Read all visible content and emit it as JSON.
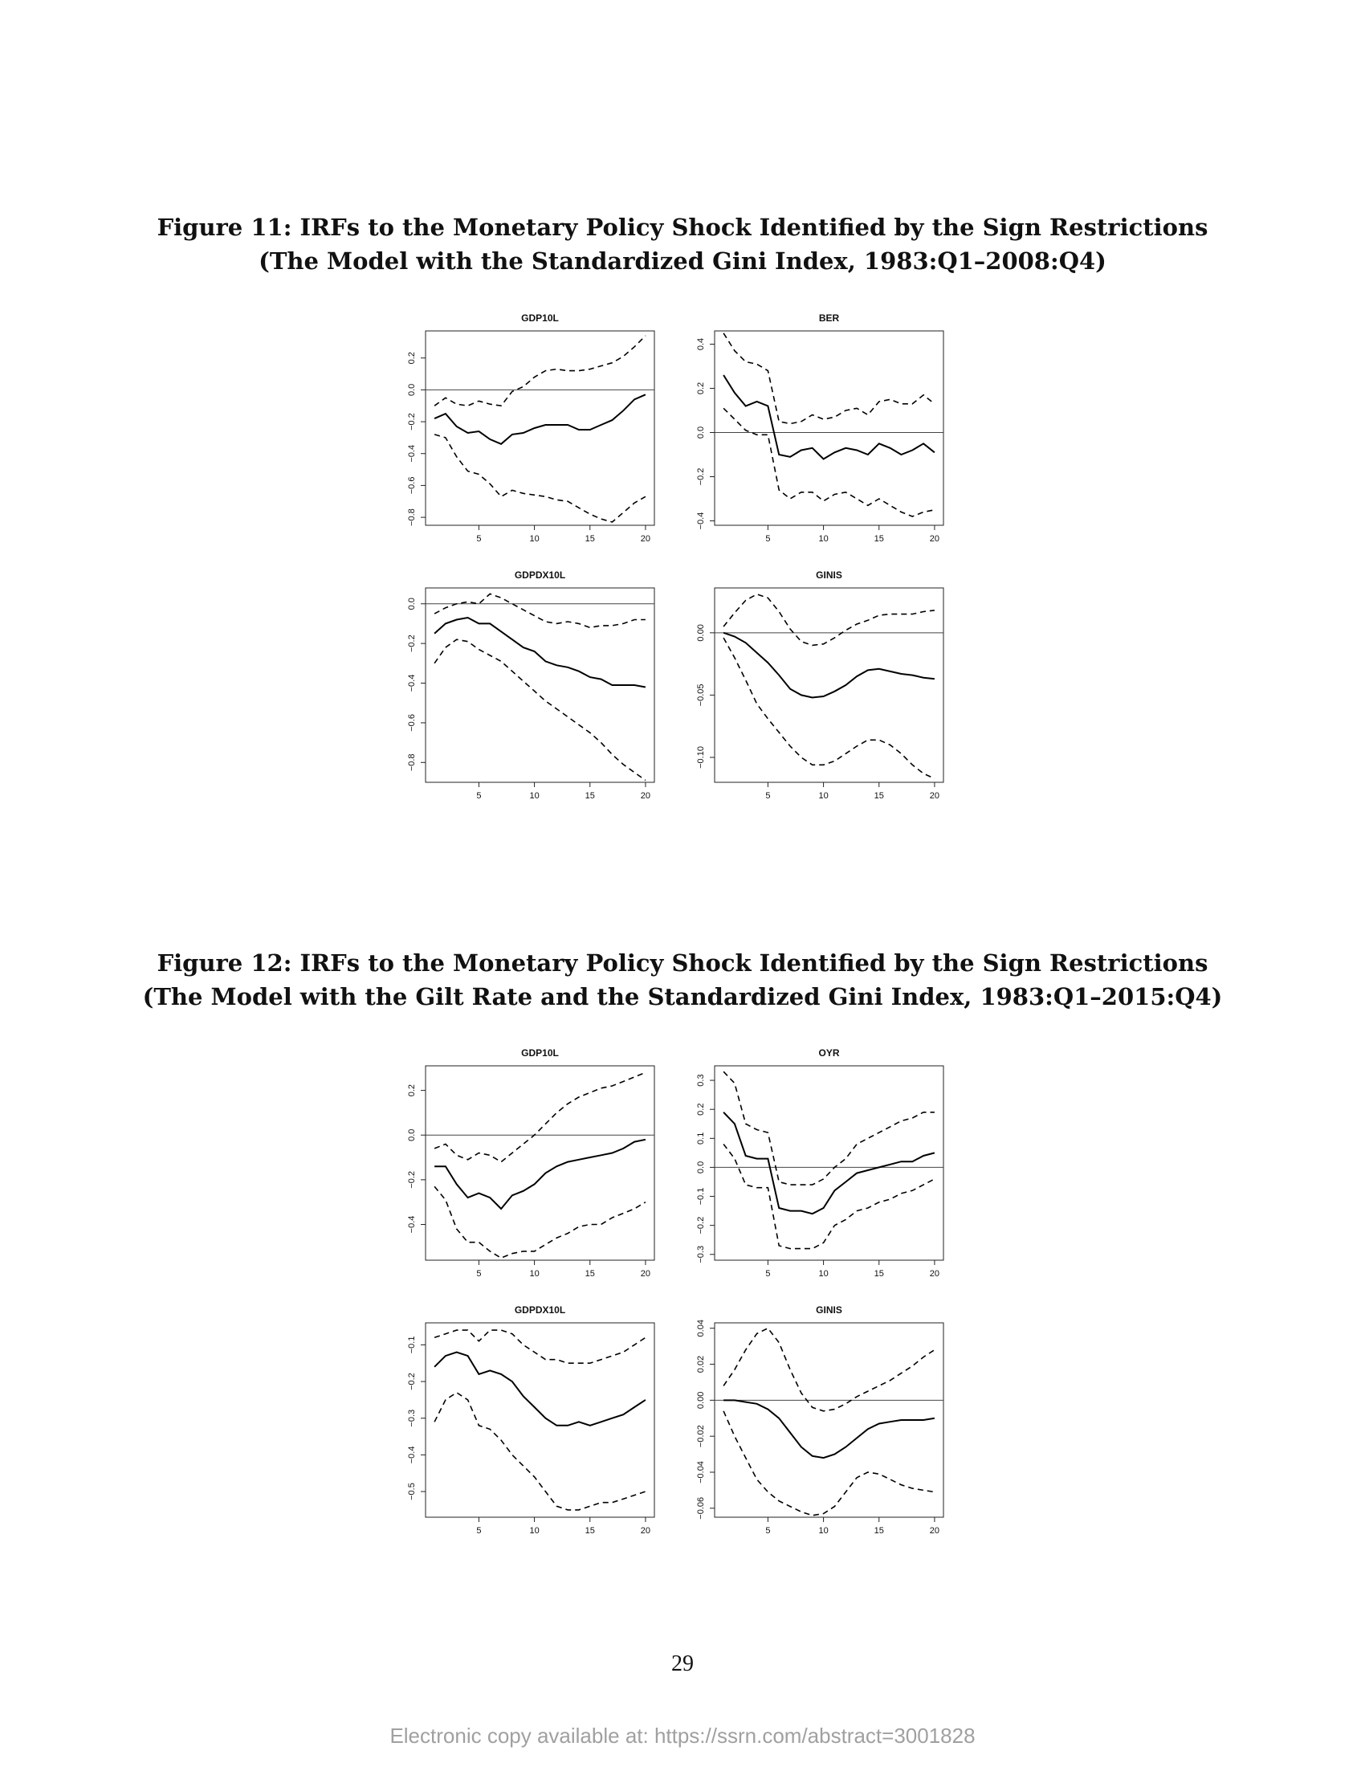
{
  "figures": [
    {
      "title_line1": "Figure 11: IRFs to the Monetary Policy Shock Identified by the Sign Restrictions",
      "title_line2": "(The Model with the Standardized Gini Index, 1983:Q1–2008:Q4)"
    },
    {
      "title_line1": "Figure 12: IRFs to the Monetary Policy Shock Identified by the Sign Restrictions",
      "title_line2": "(The Model with the Gilt Rate and the Standardized Gini Index, 1983:Q1–2015:Q4)"
    }
  ],
  "page_number": "29",
  "footer": "Electronic copy available at: https://ssrn.com/abstract=3001828",
  "chart_data": [
    {
      "type": "line",
      "figure": 11,
      "title": "GDP10L",
      "x": [
        1,
        2,
        3,
        4,
        5,
        6,
        7,
        8,
        9,
        10,
        11,
        12,
        13,
        14,
        15,
        16,
        17,
        18,
        19,
        20
      ],
      "xticks": [
        5,
        10,
        15,
        20
      ],
      "ylim": [
        -0.85,
        0.37
      ],
      "yticks": [
        -0.8,
        -0.6,
        -0.4,
        -0.2,
        0.0,
        0.2
      ],
      "yticklabels": [
        "−0.8",
        "−0.6",
        "−0.4",
        "−0.2",
        "0.0",
        "0.2"
      ],
      "series": [
        {
          "style": "solid",
          "values": [
            -0.18,
            -0.15,
            -0.23,
            -0.27,
            -0.26,
            -0.31,
            -0.34,
            -0.28,
            -0.27,
            -0.24,
            -0.22,
            -0.22,
            -0.22,
            -0.25,
            -0.25,
            -0.22,
            -0.19,
            -0.13,
            -0.06,
            -0.03
          ]
        },
        {
          "style": "dashed",
          "values": [
            -0.1,
            -0.05,
            -0.09,
            -0.1,
            -0.07,
            -0.09,
            -0.1,
            -0.01,
            0.02,
            0.08,
            0.12,
            0.13,
            0.12,
            0.12,
            0.13,
            0.15,
            0.17,
            0.21,
            0.27,
            0.34
          ]
        },
        {
          "style": "dashed",
          "values": [
            -0.28,
            -0.3,
            -0.42,
            -0.51,
            -0.53,
            -0.59,
            -0.67,
            -0.63,
            -0.65,
            -0.66,
            -0.67,
            -0.69,
            -0.7,
            -0.74,
            -0.78,
            -0.81,
            -0.83,
            -0.77,
            -0.71,
            -0.67
          ]
        }
      ],
      "zero_line": true
    },
    {
      "type": "line",
      "figure": 11,
      "title": "BER",
      "x": [
        1,
        2,
        3,
        4,
        5,
        6,
        7,
        8,
        9,
        10,
        11,
        12,
        13,
        14,
        15,
        16,
        17,
        18,
        19,
        20
      ],
      "xticks": [
        5,
        10,
        15,
        20
      ],
      "ylim": [
        -0.42,
        0.46
      ],
      "yticks": [
        -0.4,
        -0.2,
        0.0,
        0.2,
        0.4
      ],
      "yticklabels": [
        "−0.4",
        "−0.2",
        "0.0",
        "0.2",
        "0.4"
      ],
      "series": [
        {
          "style": "solid",
          "values": [
            0.26,
            0.18,
            0.12,
            0.14,
            0.12,
            -0.1,
            -0.11,
            -0.08,
            -0.07,
            -0.12,
            -0.09,
            -0.07,
            -0.08,
            -0.1,
            -0.05,
            -0.07,
            -0.1,
            -0.08,
            -0.05,
            -0.09
          ]
        },
        {
          "style": "dashed",
          "values": [
            0.45,
            0.37,
            0.32,
            0.31,
            0.28,
            0.05,
            0.04,
            0.05,
            0.08,
            0.06,
            0.07,
            0.1,
            0.11,
            0.08,
            0.14,
            0.15,
            0.13,
            0.13,
            0.17,
            0.13
          ]
        },
        {
          "style": "dashed",
          "values": [
            0.11,
            0.06,
            0.01,
            -0.01,
            -0.01,
            -0.26,
            -0.3,
            -0.27,
            -0.27,
            -0.31,
            -0.28,
            -0.27,
            -0.3,
            -0.33,
            -0.3,
            -0.33,
            -0.36,
            -0.38,
            -0.36,
            -0.35
          ]
        }
      ],
      "zero_line": true
    },
    {
      "type": "line",
      "figure": 11,
      "title": "GDPDX10L",
      "x": [
        1,
        2,
        3,
        4,
        5,
        6,
        7,
        8,
        9,
        10,
        11,
        12,
        13,
        14,
        15,
        16,
        17,
        18,
        19,
        20
      ],
      "xticks": [
        5,
        10,
        15,
        20
      ],
      "ylim": [
        -0.9,
        0.08
      ],
      "yticks": [
        -0.8,
        -0.6,
        -0.4,
        -0.2,
        0.0
      ],
      "yticklabels": [
        "−0.8",
        "−0.6",
        "−0.4",
        "−0.2",
        "0.0"
      ],
      "series": [
        {
          "style": "solid",
          "values": [
            -0.15,
            -0.1,
            -0.08,
            -0.07,
            -0.1,
            -0.1,
            -0.14,
            -0.18,
            -0.22,
            -0.24,
            -0.29,
            -0.31,
            -0.32,
            -0.34,
            -0.37,
            -0.38,
            -0.41,
            -0.41,
            -0.41,
            -0.42
          ]
        },
        {
          "style": "dashed",
          "values": [
            -0.05,
            -0.02,
            0.0,
            0.01,
            0.0,
            0.05,
            0.03,
            0.0,
            -0.03,
            -0.06,
            -0.09,
            -0.1,
            -0.09,
            -0.1,
            -0.12,
            -0.11,
            -0.11,
            -0.1,
            -0.08,
            -0.08
          ]
        },
        {
          "style": "dashed",
          "values": [
            -0.3,
            -0.22,
            -0.18,
            -0.19,
            -0.23,
            -0.26,
            -0.29,
            -0.34,
            -0.39,
            -0.44,
            -0.49,
            -0.53,
            -0.57,
            -0.61,
            -0.65,
            -0.7,
            -0.76,
            -0.81,
            -0.85,
            -0.89
          ]
        }
      ],
      "zero_line": true
    },
    {
      "type": "line",
      "figure": 11,
      "title": "GINIS",
      "x": [
        1,
        2,
        3,
        4,
        5,
        6,
        7,
        8,
        9,
        10,
        11,
        12,
        13,
        14,
        15,
        16,
        17,
        18,
        19,
        20
      ],
      "xticks": [
        5,
        10,
        15,
        20
      ],
      "ylim": [
        -0.12,
        0.036
      ],
      "yticks": [
        -0.1,
        -0.05,
        0.0
      ],
      "yticklabels": [
        "−0.10",
        "−0.05",
        "0.00"
      ],
      "series": [
        {
          "style": "solid",
          "values": [
            0.0,
            -0.003,
            -0.008,
            -0.016,
            -0.024,
            -0.034,
            -0.045,
            -0.05,
            -0.052,
            -0.051,
            -0.047,
            -0.042,
            -0.035,
            -0.03,
            -0.029,
            -0.031,
            -0.033,
            -0.034,
            -0.036,
            -0.037
          ]
        },
        {
          "style": "dashed",
          "values": [
            0.005,
            0.016,
            0.026,
            0.031,
            0.028,
            0.017,
            0.003,
            -0.007,
            -0.01,
            -0.009,
            -0.004,
            0.002,
            0.007,
            0.01,
            0.014,
            0.015,
            0.015,
            0.015,
            0.017,
            0.018
          ]
        },
        {
          "style": "dashed",
          "values": [
            -0.004,
            -0.02,
            -0.038,
            -0.057,
            -0.069,
            -0.08,
            -0.091,
            -0.1,
            -0.106,
            -0.106,
            -0.103,
            -0.097,
            -0.091,
            -0.086,
            -0.086,
            -0.09,
            -0.097,
            -0.106,
            -0.113,
            -0.117
          ]
        }
      ],
      "zero_line": true
    },
    {
      "type": "line",
      "figure": 12,
      "title": "GDP10L",
      "x": [
        1,
        2,
        3,
        4,
        5,
        6,
        7,
        8,
        9,
        10,
        11,
        12,
        13,
        14,
        15,
        16,
        17,
        18,
        19,
        20
      ],
      "xticks": [
        5,
        10,
        15,
        20
      ],
      "ylim": [
        -0.56,
        0.31
      ],
      "yticks": [
        -0.4,
        -0.2,
        0.0,
        0.2
      ],
      "yticklabels": [
        "−0.4",
        "−0.2",
        "0.0",
        "0.2"
      ],
      "series": [
        {
          "style": "solid",
          "values": [
            -0.14,
            -0.14,
            -0.22,
            -0.28,
            -0.26,
            -0.28,
            -0.33,
            -0.27,
            -0.25,
            -0.22,
            -0.17,
            -0.14,
            -0.12,
            -0.11,
            -0.1,
            -0.09,
            -0.08,
            -0.06,
            -0.03,
            -0.02
          ]
        },
        {
          "style": "dashed",
          "values": [
            -0.06,
            -0.04,
            -0.09,
            -0.11,
            -0.08,
            -0.09,
            -0.12,
            -0.08,
            -0.04,
            0.0,
            0.05,
            0.1,
            0.14,
            0.17,
            0.19,
            0.21,
            0.22,
            0.24,
            0.26,
            0.28
          ]
        },
        {
          "style": "dashed",
          "values": [
            -0.23,
            -0.29,
            -0.42,
            -0.48,
            -0.48,
            -0.52,
            -0.55,
            -0.53,
            -0.52,
            -0.52,
            -0.49,
            -0.46,
            -0.44,
            -0.41,
            -0.4,
            -0.4,
            -0.37,
            -0.35,
            -0.33,
            -0.3
          ]
        }
      ],
      "zero_line": true
    },
    {
      "type": "line",
      "figure": 12,
      "title": "OYR",
      "x": [
        1,
        2,
        3,
        4,
        5,
        6,
        7,
        8,
        9,
        10,
        11,
        12,
        13,
        14,
        15,
        16,
        17,
        18,
        19,
        20
      ],
      "xticks": [
        5,
        10,
        15,
        20
      ],
      "ylim": [
        -0.32,
        0.35
      ],
      "yticks": [
        -0.3,
        -0.2,
        -0.1,
        0.0,
        0.1,
        0.2,
        0.3
      ],
      "yticklabels": [
        "−0.3",
        "−0.2",
        "−0.1",
        "0.0",
        "0.1",
        "0.2",
        "0.3"
      ],
      "series": [
        {
          "style": "solid",
          "values": [
            0.19,
            0.15,
            0.04,
            0.03,
            0.03,
            -0.14,
            -0.15,
            -0.15,
            -0.16,
            -0.14,
            -0.08,
            -0.05,
            -0.02,
            -0.01,
            0.0,
            0.01,
            0.02,
            0.02,
            0.04,
            0.05
          ]
        },
        {
          "style": "dashed",
          "values": [
            0.33,
            0.29,
            0.15,
            0.13,
            0.12,
            -0.05,
            -0.06,
            -0.06,
            -0.06,
            -0.04,
            0.0,
            0.03,
            0.08,
            0.1,
            0.12,
            0.14,
            0.16,
            0.17,
            0.19,
            0.19
          ]
        },
        {
          "style": "dashed",
          "values": [
            0.08,
            0.03,
            -0.06,
            -0.07,
            -0.07,
            -0.27,
            -0.28,
            -0.28,
            -0.28,
            -0.26,
            -0.2,
            -0.18,
            -0.15,
            -0.14,
            -0.12,
            -0.11,
            -0.09,
            -0.08,
            -0.06,
            -0.04
          ]
        }
      ],
      "zero_line": true
    },
    {
      "type": "line",
      "figure": 12,
      "title": "GDPDX10L",
      "x": [
        1,
        2,
        3,
        4,
        5,
        6,
        7,
        8,
        9,
        10,
        11,
        12,
        13,
        14,
        15,
        16,
        17,
        18,
        19,
        20
      ],
      "xticks": [
        5,
        10,
        15,
        20
      ],
      "ylim": [
        -0.57,
        -0.04
      ],
      "yticks": [
        -0.5,
        -0.4,
        -0.3,
        -0.2,
        -0.1
      ],
      "yticklabels": [
        "−0.5",
        "−0.4",
        "−0.3",
        "−0.2",
        "−0.1"
      ],
      "series": [
        {
          "style": "solid",
          "values": [
            -0.16,
            -0.13,
            -0.12,
            -0.13,
            -0.18,
            -0.17,
            -0.18,
            -0.2,
            -0.24,
            -0.27,
            -0.3,
            -0.32,
            -0.32,
            -0.31,
            -0.32,
            -0.31,
            -0.3,
            -0.29,
            -0.27,
            -0.25
          ]
        },
        {
          "style": "dashed",
          "values": [
            -0.08,
            -0.07,
            -0.06,
            -0.06,
            -0.09,
            -0.06,
            -0.06,
            -0.07,
            -0.1,
            -0.12,
            -0.14,
            -0.14,
            -0.15,
            -0.15,
            -0.15,
            -0.14,
            -0.13,
            -0.12,
            -0.1,
            -0.08
          ]
        },
        {
          "style": "dashed",
          "values": [
            -0.31,
            -0.25,
            -0.23,
            -0.25,
            -0.32,
            -0.33,
            -0.36,
            -0.4,
            -0.43,
            -0.46,
            -0.5,
            -0.54,
            -0.55,
            -0.55,
            -0.54,
            -0.53,
            -0.53,
            -0.52,
            -0.51,
            -0.5
          ]
        }
      ],
      "zero_line": false
    },
    {
      "type": "line",
      "figure": 12,
      "title": "GINIS",
      "x": [
        1,
        2,
        3,
        4,
        5,
        6,
        7,
        8,
        9,
        10,
        11,
        12,
        13,
        14,
        15,
        16,
        17,
        18,
        19,
        20
      ],
      "xticks": [
        5,
        10,
        15,
        20
      ],
      "ylim": [
        -0.065,
        0.043
      ],
      "yticks": [
        -0.06,
        -0.04,
        -0.02,
        0.0,
        0.02,
        0.04
      ],
      "yticklabels": [
        "−0.06",
        "−0.04",
        "−0.02",
        "0.00",
        "0.02",
        "0.04"
      ],
      "series": [
        {
          "style": "solid",
          "values": [
            0.0,
            0.0,
            -0.001,
            -0.002,
            -0.005,
            -0.01,
            -0.018,
            -0.026,
            -0.031,
            -0.032,
            -0.03,
            -0.026,
            -0.021,
            -0.016,
            -0.013,
            -0.012,
            -0.011,
            -0.011,
            -0.011,
            -0.01
          ]
        },
        {
          "style": "dashed",
          "values": [
            0.008,
            0.017,
            0.028,
            0.037,
            0.04,
            0.032,
            0.017,
            0.004,
            -0.004,
            -0.006,
            -0.005,
            -0.002,
            0.002,
            0.005,
            0.008,
            0.011,
            0.015,
            0.019,
            0.024,
            0.028
          ]
        },
        {
          "style": "dashed",
          "values": [
            -0.006,
            -0.02,
            -0.032,
            -0.044,
            -0.051,
            -0.056,
            -0.059,
            -0.062,
            -0.064,
            -0.063,
            -0.059,
            -0.051,
            -0.043,
            -0.04,
            -0.041,
            -0.044,
            -0.047,
            -0.049,
            -0.05,
            -0.051
          ]
        }
      ],
      "zero_line": true
    }
  ]
}
